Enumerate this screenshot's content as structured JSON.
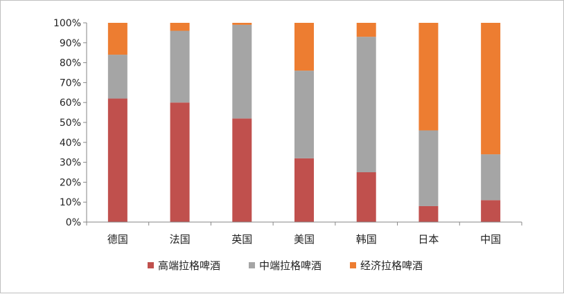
{
  "chart_data": {
    "type": "bar",
    "stacked": true,
    "categories": [
      "德国",
      "法国",
      "英国",
      "美国",
      "韩国",
      "日本",
      "中国"
    ],
    "series": [
      {
        "name": "高端拉格啤酒",
        "color": "#c0504d",
        "values": [
          62,
          60,
          52,
          32,
          25,
          8,
          11
        ]
      },
      {
        "name": "中端拉格啤酒",
        "color": "#a5a5a5",
        "values": [
          22,
          36,
          47,
          44,
          68,
          38,
          23
        ]
      },
      {
        "name": "经济拉格啤酒",
        "color": "#ed7d31",
        "values": [
          16,
          4,
          1,
          24,
          7,
          54,
          66
        ]
      }
    ],
    "yticks": [
      "0%",
      "10%",
      "20%",
      "30%",
      "40%",
      "50%",
      "60%",
      "70%",
      "80%",
      "90%",
      "100%"
    ],
    "ylim": [
      0,
      100
    ],
    "grid": false,
    "legend_position": "bottom"
  }
}
